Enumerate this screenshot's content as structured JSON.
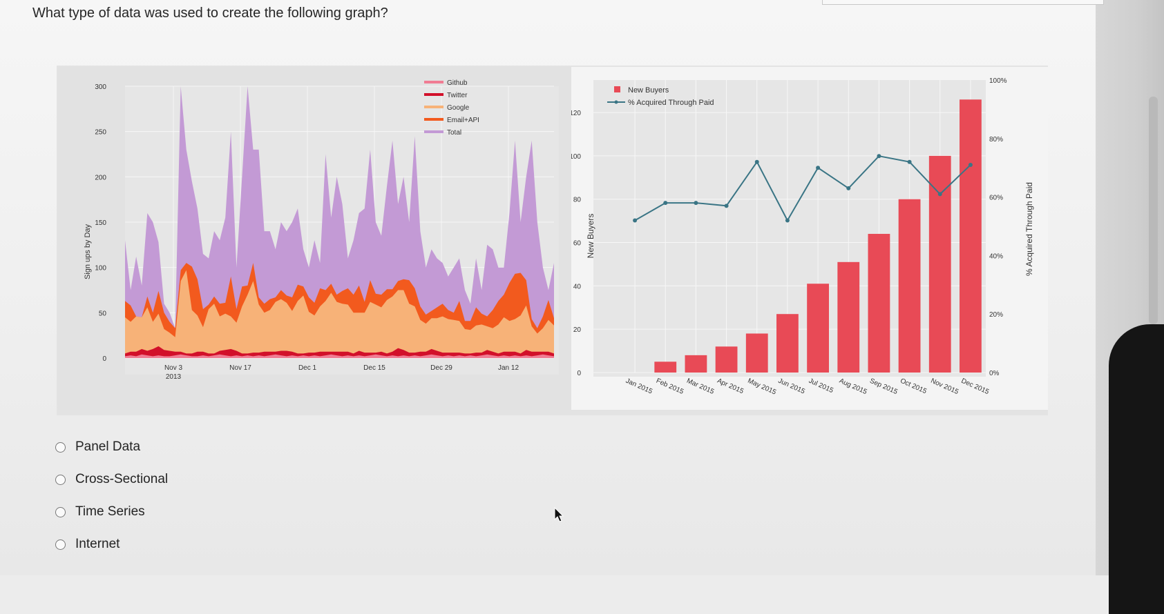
{
  "question": "What type of data was used to create the following graph?",
  "options": [
    "Panel Data",
    "Cross-Sectional",
    "Time Series",
    "Internet"
  ],
  "colors": {
    "github": "#f07c93",
    "twitter": "#d2102a",
    "google": "#f7b278",
    "email_api": "#f25a1e",
    "total": "#c39ad5",
    "new_buyers": "#e84a56",
    "paid_line": "#3a7585"
  },
  "chart_data": [
    {
      "type": "area",
      "title": "",
      "xlabel": "",
      "ylabel": "Sign ups by Day",
      "ylim": [
        0,
        300
      ],
      "y_ticks": [
        "0",
        "50",
        "100",
        "150",
        "200",
        "250",
        "300"
      ],
      "x_ticks": [
        {
          "label": "Nov 3",
          "sub": "2013"
        },
        {
          "label": "Nov 17",
          "sub": ""
        },
        {
          "label": "Dec 1",
          "sub": ""
        },
        {
          "label": "Dec 15",
          "sub": ""
        },
        {
          "label": "Dec 29",
          "sub": ""
        },
        {
          "label": "Jan 12",
          "sub": ""
        }
      ],
      "legend_position": "top-right",
      "series": [
        {
          "name": "Github",
          "values": [
            2,
            3,
            2,
            4,
            3,
            2,
            3,
            2,
            2,
            3,
            4,
            3,
            2,
            2,
            3,
            2,
            3,
            4,
            3,
            2,
            3,
            2,
            3,
            2,
            3,
            2,
            3,
            4,
            3,
            2,
            3,
            2,
            3,
            2,
            3,
            2,
            3,
            4,
            3,
            2,
            3,
            2,
            3,
            2,
            3,
            4,
            3,
            2,
            3,
            2,
            3,
            2,
            3,
            2,
            3,
            4,
            3,
            2,
            3,
            2,
            3,
            2,
            3,
            2,
            3,
            4,
            3,
            2,
            3,
            2,
            3,
            2,
            3,
            2,
            3,
            4,
            3,
            2
          ]
        },
        {
          "name": "Twitter",
          "values": [
            3,
            4,
            5,
            6,
            5,
            8,
            10,
            7,
            6,
            4,
            3,
            2,
            3,
            5,
            4,
            3,
            2,
            4,
            6,
            8,
            5,
            3,
            2,
            4,
            3,
            5,
            4,
            3,
            5,
            6,
            4,
            3,
            2,
            4,
            3,
            5,
            4,
            3,
            4,
            5,
            4,
            3,
            5,
            4,
            3,
            2,
            4,
            3,
            4,
            9,
            6,
            4,
            3,
            5,
            4,
            6,
            5,
            4,
            3,
            4,
            3,
            3,
            2,
            4,
            3,
            5,
            4,
            3,
            4,
            5,
            4,
            3,
            6,
            5,
            4,
            3,
            4,
            3
          ]
        },
        {
          "name": "Google",
          "values": [
            40,
            33,
            39,
            35,
            48,
            30,
            36,
            23,
            20,
            16,
            78,
            92,
            48,
            40,
            27,
            49,
            55,
            38,
            40,
            36,
            31,
            52,
            65,
            79,
            53,
            43,
            46,
            55,
            57,
            53,
            45,
            58,
            64,
            45,
            41,
            50,
            56,
            65,
            55,
            53,
            52,
            45,
            42,
            44,
            56,
            53,
            49,
            59,
            61,
            64,
            66,
            54,
            51,
            35,
            31,
            34,
            36,
            40,
            37,
            36,
            35,
            27,
            26,
            30,
            31,
            26,
            26,
            32,
            38,
            34,
            36,
            42,
            49,
            28,
            20,
            26,
            35,
            31
          ]
        },
        {
          "name": "Email+API",
          "values": [
            18,
            18,
            0,
            0,
            12,
            10,
            25,
            18,
            12,
            10,
            12,
            8,
            48,
            40,
            20,
            5,
            8,
            14,
            12,
            44,
            15,
            22,
            10,
            20,
            8,
            10,
            12,
            5,
            10,
            8,
            15,
            18,
            10,
            16,
            14,
            20,
            12,
            10,
            8,
            14,
            18,
            20,
            30,
            12,
            24,
            12,
            14,
            12,
            8,
            10,
            12,
            26,
            20,
            15,
            10,
            8,
            12,
            14,
            10,
            8,
            22,
            9,
            10,
            20,
            12,
            11,
            20,
            26,
            25,
            42,
            50,
            47,
            28,
            8,
            6,
            13,
            22,
            8
          ]
        },
        {
          "name": "Total",
          "values": [
            130,
            75,
            112,
            80,
            160,
            150,
            128,
            60,
            50,
            30,
            300,
            230,
            195,
            165,
            115,
            110,
            140,
            130,
            155,
            250,
            100,
            200,
            300,
            230,
            230,
            140,
            140,
            120,
            150,
            140,
            150,
            165,
            120,
            100,
            130,
            105,
            225,
            155,
            200,
            170,
            110,
            130,
            160,
            165,
            230,
            150,
            135,
            190,
            240,
            170,
            200,
            150,
            245,
            140,
            100,
            120,
            110,
            105,
            90,
            100,
            110,
            75,
            60,
            110,
            75,
            125,
            120,
            100,
            100,
            160,
            240,
            150,
            200,
            240,
            150,
            100,
            75,
            105
          ]
        }
      ]
    },
    {
      "type": "bar",
      "title": "",
      "xlabel": "",
      "ylabel": "New Buyers",
      "y2label": "% Acquired Through Paid",
      "ylim": [
        0,
        135
      ],
      "y2lim": [
        0,
        100
      ],
      "y_ticks": [
        "0",
        "20",
        "40",
        "60",
        "80",
        "100",
        "120"
      ],
      "y2_ticks": [
        "0%",
        "20%",
        "40%",
        "60%",
        "80%",
        "100%"
      ],
      "legend_position": "top-left",
      "categories": [
        "Jan 2015",
        "Feb 2015",
        "Mar 2015",
        "Apr 2015",
        "May 2015",
        "Jun 2015",
        "Jul 2015",
        "Aug 2015",
        "Sep 2015",
        "Oct 2015",
        "Nov 2015",
        "Dec 2015"
      ],
      "series": [
        {
          "name": "New Buyers",
          "type": "bar",
          "values": [
            0,
            5,
            8,
            12,
            18,
            27,
            41,
            51,
            64,
            80,
            100,
            126
          ]
        },
        {
          "name": "% Acquired Through Paid",
          "type": "line",
          "values": [
            52,
            58,
            58,
            57,
            72,
            52,
            70,
            63,
            74,
            72,
            61,
            71
          ]
        }
      ]
    }
  ]
}
